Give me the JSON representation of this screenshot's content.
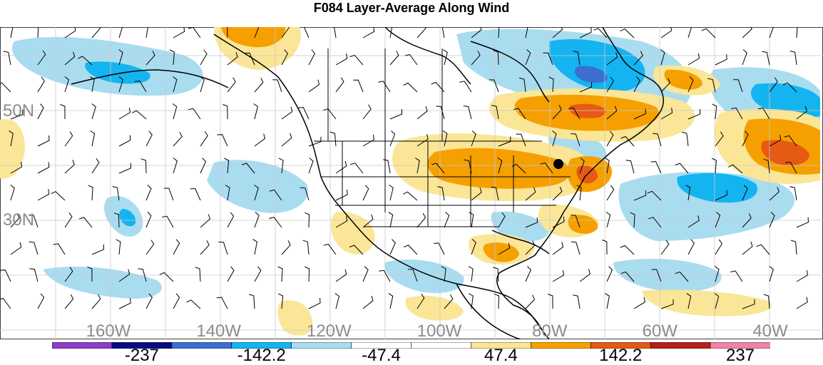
{
  "title": "F084 Layer-Average Along Wind",
  "map": {
    "lat_labels": [
      "50N",
      "30N"
    ],
    "lon_labels": [
      "160W",
      "140W",
      "120W",
      "100W",
      "80W",
      "60W",
      "40W"
    ],
    "marker": "filled-circle"
  },
  "colorbar": {
    "colors": [
      "#8c3cc8",
      "#0a0a82",
      "#3c6ed2",
      "#14b4f0",
      "#aadcf0",
      "#ffffff",
      "#ffffff",
      "#fae696",
      "#f5a000",
      "#e65a14",
      "#b4201e",
      "#f082aa"
    ],
    "labels": [
      "-237",
      "-142.2",
      "-47.4",
      "47.4",
      "142.2",
      "237"
    ]
  }
}
